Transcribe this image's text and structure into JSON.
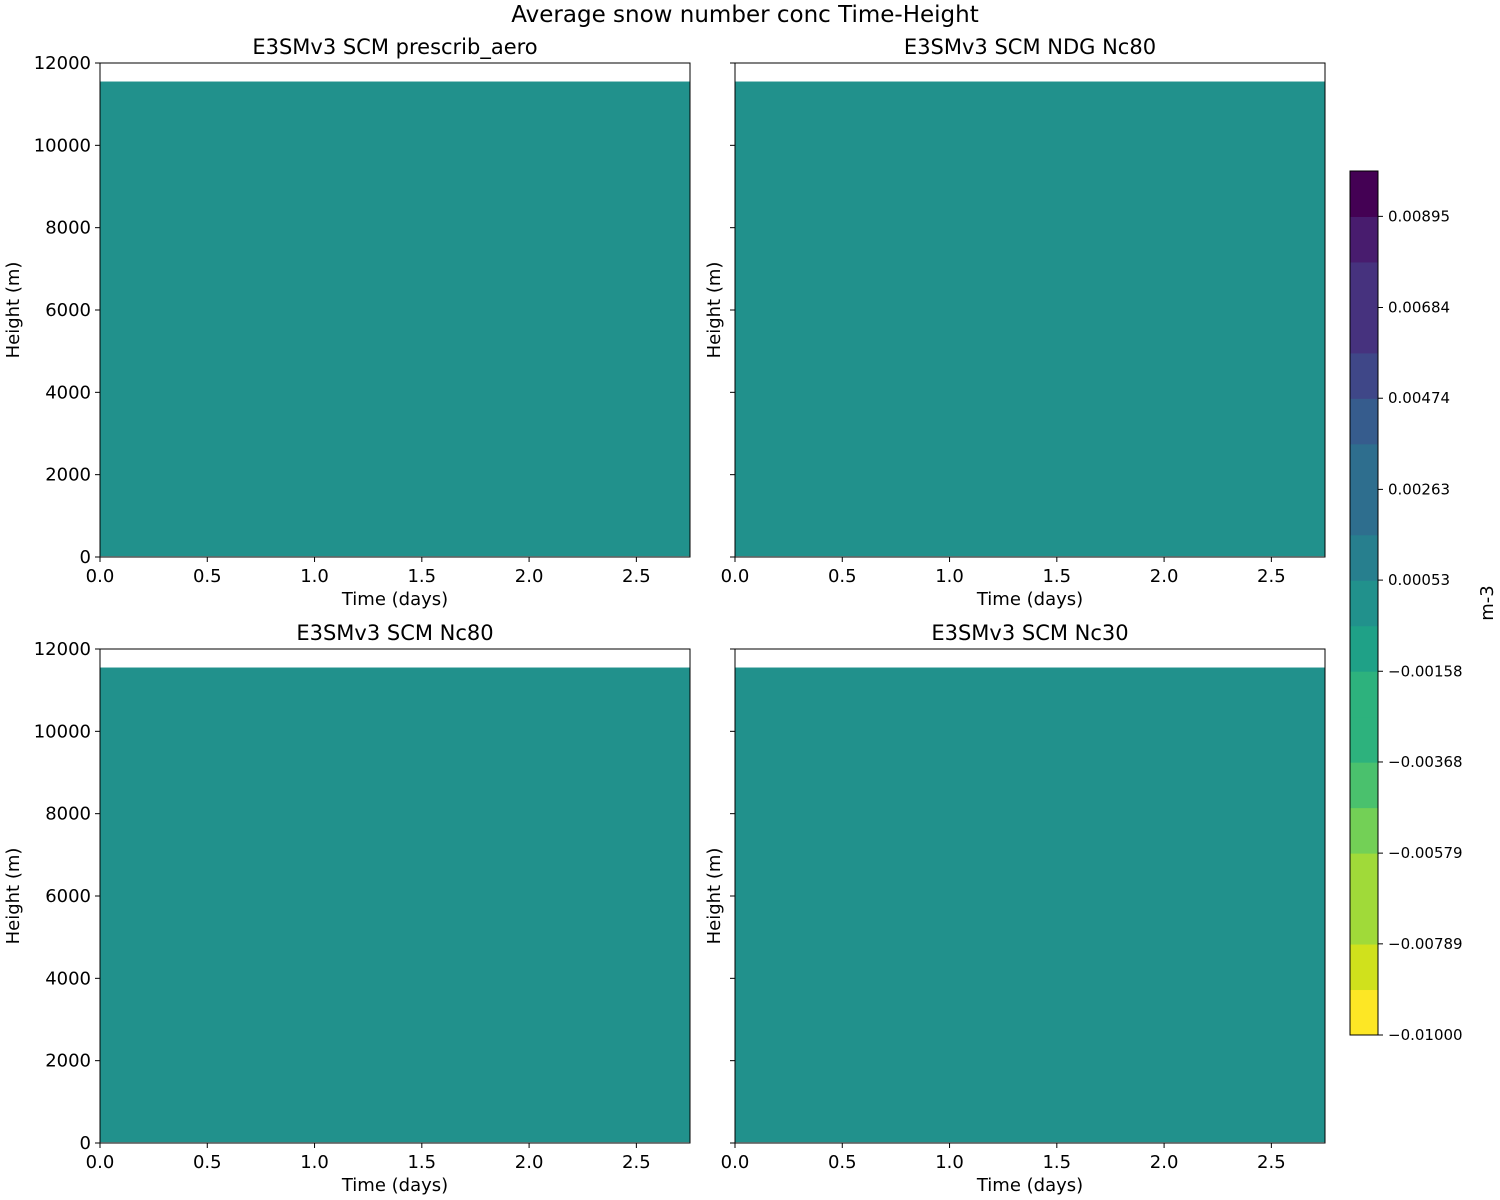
{
  "figure": {
    "title": "Average snow number conc Time-Height"
  },
  "chart_data": [
    {
      "type": "heatmap",
      "title": "E3SMv3 SCM prescrib_aero",
      "xlabel": "Time (days)",
      "ylabel": "Height (m)",
      "xlim": [
        0,
        2.75
      ],
      "ylim": [
        0,
        12000
      ],
      "xticks": [
        "0.0",
        "0.5",
        "1.0",
        "1.5",
        "2.0",
        "2.5"
      ],
      "yticks": [
        "0",
        "2000",
        "4000",
        "6000",
        "8000",
        "10000",
        "12000"
      ],
      "yticklabels_shown": true,
      "fill_range_height": [
        20,
        11550
      ],
      "value": 0.0,
      "fill_color": "#21918c"
    },
    {
      "type": "heatmap",
      "title": "E3SMv3 SCM NDG Nc80",
      "xlabel": "Time (days)",
      "ylabel": "Height (m)",
      "xlim": [
        0,
        2.75
      ],
      "ylim": [
        0,
        12000
      ],
      "xticks": [
        "0.0",
        "0.5",
        "1.0",
        "1.5",
        "2.0",
        "2.5"
      ],
      "yticks": [
        "0",
        "2000",
        "4000",
        "6000",
        "8000",
        "10000",
        "12000"
      ],
      "yticklabels_shown": false,
      "fill_range_height": [
        20,
        11550
      ],
      "value": 0.0,
      "fill_color": "#21918c"
    },
    {
      "type": "heatmap",
      "title": "E3SMv3 SCM Nc80",
      "xlabel": "Time (days)",
      "ylabel": "Height (m)",
      "xlim": [
        0,
        2.75
      ],
      "ylim": [
        0,
        12000
      ],
      "xticks": [
        "0.0",
        "0.5",
        "1.0",
        "1.5",
        "2.0",
        "2.5"
      ],
      "yticks": [
        "0",
        "2000",
        "4000",
        "6000",
        "8000",
        "10000",
        "12000"
      ],
      "yticklabels_shown": true,
      "fill_range_height": [
        20,
        11550
      ],
      "value": 0.0,
      "fill_color": "#21918c"
    },
    {
      "type": "heatmap",
      "title": "E3SMv3 SCM Nc30",
      "xlabel": "Time (days)",
      "ylabel": "Height (m)",
      "xlim": [
        0,
        2.75
      ],
      "ylim": [
        0,
        12000
      ],
      "xticks": [
        "0.0",
        "0.5",
        "1.0",
        "1.5",
        "2.0",
        "2.5"
      ],
      "yticks": [
        "0",
        "2000",
        "4000",
        "6000",
        "8000",
        "10000",
        "12000"
      ],
      "yticklabels_shown": false,
      "fill_range_height": [
        20,
        11550
      ],
      "value": 0.0,
      "fill_color": "#21918c"
    }
  ],
  "colorbar": {
    "label": "m-3",
    "vmin": -0.01,
    "vmax": 0.01,
    "levels": 19,
    "colormap": "viridis_r",
    "colors": [
      "#fde725",
      "#d0e11c",
      "#a0da39",
      "#73d056",
      "#4ac16d",
      "#2db27d",
      "#1fa187",
      "#21918c",
      "#277f8e",
      "#2e6e8e",
      "#365c8d",
      "#3f4788",
      "#46327e",
      "#481c6e",
      "#440154"
    ],
    "ticks": [
      -0.01,
      -0.00789,
      -0.00579,
      -0.00368,
      -0.00158,
      0.00053,
      0.00263,
      0.00474,
      0.00684,
      0.00895
    ],
    "ticklabels": [
      "−0.01000",
      "−0.00789",
      "−0.00579",
      "−0.00368",
      "−0.00158",
      "0.00053",
      "0.00263",
      "0.00474",
      "0.00684",
      "0.00895"
    ]
  }
}
